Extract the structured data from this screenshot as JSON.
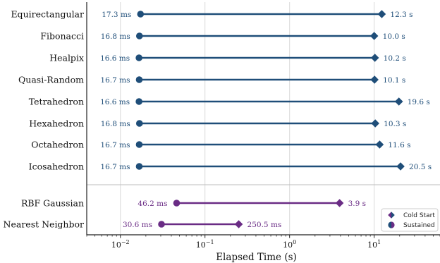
{
  "chart_data": {
    "type": "dumbbell",
    "xscale": "log",
    "xlim": [
      0.004,
      60
    ],
    "xlabel": "Elapsed Time (s)",
    "xticks": [
      {
        "value": 0.01,
        "base": "10",
        "exp": "−2"
      },
      {
        "value": 0.1,
        "base": "10",
        "exp": "−1"
      },
      {
        "value": 1,
        "base": "10",
        "exp": "0"
      },
      {
        "value": 10,
        "base": "10",
        "exp": "1"
      }
    ],
    "grid": "x-major",
    "legend_position": "lower-right",
    "legend": [
      {
        "label": "Cold Start",
        "marker": "diamond"
      },
      {
        "label": "Sustained",
        "marker": "circle"
      }
    ],
    "groups": [
      {
        "color": "#1f4e79",
        "rows": [
          {
            "category": "Equirectangular",
            "sustained": 0.0173,
            "sustained_label": "17.3 ms",
            "cold": 12.3,
            "cold_label": "12.3 s"
          },
          {
            "category": "Fibonacci",
            "sustained": 0.0168,
            "sustained_label": "16.8 ms",
            "cold": 10.0,
            "cold_label": "10.0 s"
          },
          {
            "category": "Healpix",
            "sustained": 0.0166,
            "sustained_label": "16.6 ms",
            "cold": 10.2,
            "cold_label": "10.2 s"
          },
          {
            "category": "Quasi-Random",
            "sustained": 0.0167,
            "sustained_label": "16.7 ms",
            "cold": 10.1,
            "cold_label": "10.1 s"
          },
          {
            "category": "Tetrahedron",
            "sustained": 0.0166,
            "sustained_label": "16.6 ms",
            "cold": 19.6,
            "cold_label": "19.6 s"
          },
          {
            "category": "Hexahedron",
            "sustained": 0.0168,
            "sustained_label": "16.8 ms",
            "cold": 10.3,
            "cold_label": "10.3 s"
          },
          {
            "category": "Octahedron",
            "sustained": 0.0167,
            "sustained_label": "16.7 ms",
            "cold": 11.6,
            "cold_label": "11.6 s"
          },
          {
            "category": "Icosahedron",
            "sustained": 0.0167,
            "sustained_label": "16.7 ms",
            "cold": 20.5,
            "cold_label": "20.5 s"
          }
        ]
      },
      {
        "color": "#6a2c85",
        "rows": [
          {
            "category": "RBF Gaussian",
            "sustained": 0.0462,
            "sustained_label": "46.2 ms",
            "cold": 3.9,
            "cold_label": "3.9 s"
          },
          {
            "category": "Nearest Neighbor",
            "sustained": 0.0306,
            "sustained_label": "30.6 ms",
            "cold": 0.2505,
            "cold_label": "250.5 ms"
          }
        ]
      }
    ]
  }
}
